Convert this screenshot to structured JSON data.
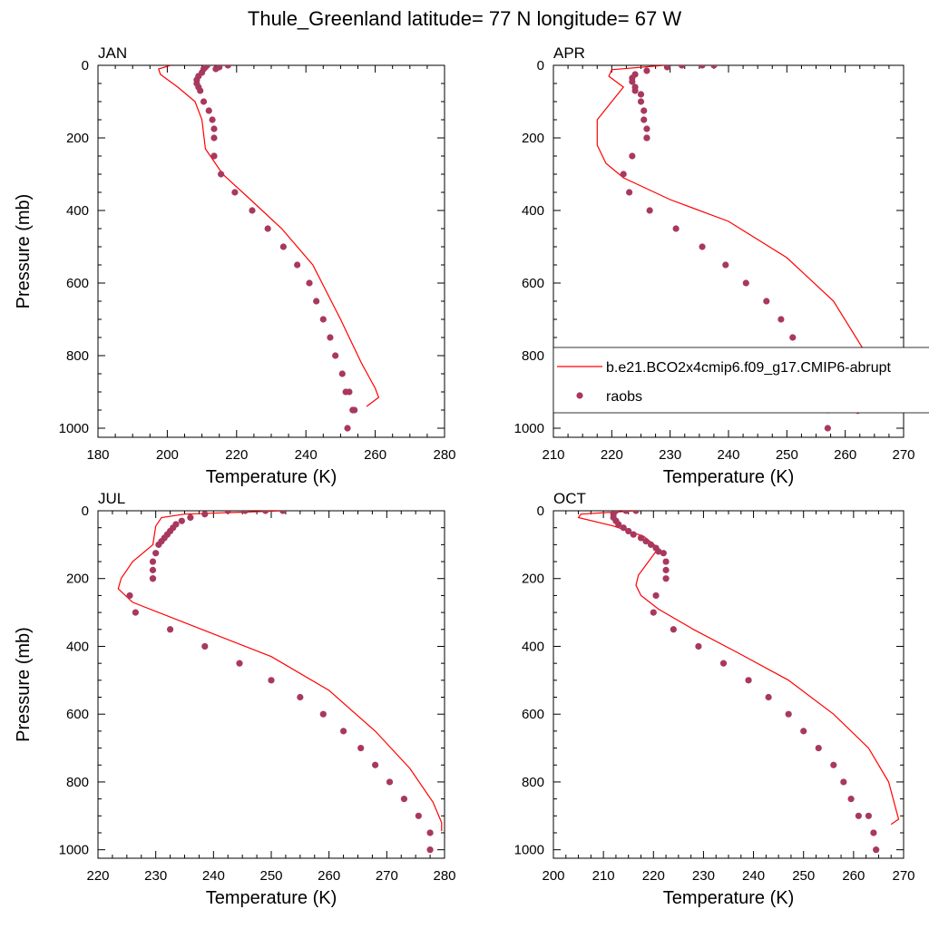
{
  "title": "Thule_Greenland  latitude= 77 N longitude= 67 W",
  "colors": {
    "model_line": "#ff0000",
    "raobs_marker": "#a8385e",
    "axis": "#000000"
  },
  "legend": {
    "placement": "inside APR panel, lower right",
    "model_label": "b.e21.BCO2x4cmip6.f09_g17.CMIP6-abrupt",
    "obs_label": "raobs"
  },
  "chart_data": [
    {
      "type": "line",
      "panel": "JAN",
      "xlabel": "Temperature (K)",
      "ylabel": "Pressure (mb)",
      "xlim": [
        180,
        280
      ],
      "ylim": [
        1025,
        0
      ],
      "xticks": [
        180,
        200,
        220,
        240,
        260,
        280
      ],
      "yticks": [
        0,
        200,
        400,
        600,
        800,
        1000
      ],
      "series": [
        {
          "name": "b.e21.BCO2x4cmip6.f09_g17.CMIP6-abrupt",
          "style": "line",
          "x": [
            201,
            197.5,
            198,
            203,
            208,
            210,
            211,
            216,
            224,
            233,
            242,
            250,
            256,
            260,
            261,
            257.5
          ],
          "y": [
            0,
            10,
            25,
            60,
            100,
            150,
            230,
            300,
            370,
            450,
            550,
            700,
            820,
            890,
            915,
            940
          ]
        },
        {
          "name": "raobs",
          "style": "markers",
          "x": [
            217.5,
            215,
            214,
            211.5,
            211,
            210.5,
            210,
            209,
            208.5,
            208.5,
            209,
            209.5,
            210.5,
            212,
            213,
            213.5,
            213.5,
            213.5,
            213.5,
            215.5,
            219.5,
            224.5,
            229,
            233.5,
            237.5,
            241,
            243,
            245,
            247,
            248.5,
            250.5,
            251.5,
            252.5,
            253.5,
            254,
            252
          ],
          "y": [
            0,
            5,
            10,
            0,
            5,
            10,
            20,
            30,
            40,
            50,
            60,
            70,
            100,
            125,
            150,
            175,
            200,
            250,
            250,
            300,
            350,
            400,
            450,
            500,
            550,
            600,
            650,
            700,
            750,
            800,
            850,
            900,
            900,
            950,
            950,
            1000
          ]
        }
      ]
    },
    {
      "type": "line",
      "panel": "APR",
      "xlabel": "Temperature (K)",
      "ylabel": "",
      "xlim": [
        210,
        270
      ],
      "ylim": [
        1025,
        0
      ],
      "xticks": [
        210,
        220,
        230,
        240,
        250,
        260,
        270
      ],
      "yticks": [
        0,
        200,
        400,
        600,
        800,
        1000
      ],
      "series": [
        {
          "name": "b.e21.BCO2x4cmip6.f09_g17.CMIP6-abrupt",
          "style": "line",
          "x": [
            229,
            220,
            219.5,
            222,
            220,
            217.5,
            217.5,
            219,
            222,
            230,
            240,
            250,
            258,
            263,
            264,
            265,
            262
          ],
          "y": [
            0,
            12,
            30,
            60,
            100,
            150,
            220,
            270,
            310,
            370,
            430,
            530,
            650,
            780,
            880,
            940,
            960
          ]
        },
        {
          "name": "raobs",
          "style": "markers",
          "x": [
            237.5,
            235.5,
            232,
            229.5,
            226,
            224,
            223.5,
            223.5,
            224,
            224,
            225,
            225,
            225.5,
            225.5,
            226,
            226,
            226,
            223.5,
            222,
            223,
            226.5,
            231,
            235.5,
            239.5,
            243,
            246.5,
            249,
            251,
            253,
            254.5,
            256,
            257,
            257
          ],
          "y": [
            0,
            0,
            0,
            5,
            15,
            25,
            35,
            45,
            60,
            70,
            80,
            100,
            125,
            150,
            175,
            200,
            200,
            250,
            300,
            350,
            400,
            450,
            500,
            550,
            600,
            650,
            700,
            750,
            800,
            850,
            900,
            950,
            1000
          ]
        }
      ]
    },
    {
      "type": "line",
      "panel": "JUL",
      "xlabel": "Temperature (K)",
      "ylabel": "Pressure (mb)",
      "xlim": [
        220,
        280
      ],
      "ylim": [
        1025,
        0
      ],
      "xticks": [
        220,
        230,
        240,
        250,
        260,
        270,
        280
      ],
      "yticks": [
        0,
        200,
        400,
        600,
        800,
        1000
      ],
      "series": [
        {
          "name": "b.e21.BCO2x4cmip6.f09_g17.CMIP6-abrupt",
          "style": "line",
          "x": [
            252,
            235,
            231,
            230,
            229.5,
            226,
            224,
            223.5,
            226,
            238,
            250,
            260,
            268,
            274,
            278,
            279.5,
            279.5
          ],
          "y": [
            0,
            10,
            20,
            45,
            100,
            150,
            200,
            230,
            270,
            350,
            430,
            530,
            650,
            760,
            860,
            920,
            945
          ]
        },
        {
          "name": "raobs",
          "style": "markers",
          "x": [
            252,
            249,
            245.5,
            242.5,
            238.5,
            236,
            234.5,
            233.5,
            233,
            232.5,
            232,
            231.5,
            231,
            230.5,
            230,
            229.5,
            229.5,
            229.5,
            229.5,
            225.5,
            226.5,
            232.5,
            238.5,
            244.5,
            250,
            255,
            259,
            262.5,
            265.5,
            268,
            270.5,
            273,
            275.5,
            277.5,
            277.5
          ],
          "y": [
            0,
            0,
            0,
            0,
            10,
            20,
            30,
            40,
            50,
            60,
            70,
            80,
            90,
            100,
            125,
            150,
            175,
            200,
            200,
            250,
            300,
            350,
            400,
            450,
            500,
            550,
            600,
            650,
            700,
            750,
            800,
            850,
            900,
            950,
            1000
          ]
        }
      ]
    },
    {
      "type": "line",
      "panel": "OCT",
      "xlabel": "Temperature (K)",
      "ylabel": "",
      "xlim": [
        200,
        270
      ],
      "ylim": [
        1025,
        0
      ],
      "xticks": [
        200,
        210,
        220,
        230,
        240,
        250,
        260,
        270
      ],
      "yticks": [
        0,
        200,
        400,
        600,
        800,
        1000
      ],
      "series": [
        {
          "name": "b.e21.BCO2x4cmip6.f09_g17.CMIP6-abrupt",
          "style": "line",
          "x": [
            216.5,
            205.5,
            205,
            212,
            218,
            221,
            217,
            216.5,
            217.5,
            221,
            228,
            237,
            247,
            256,
            263,
            267,
            269,
            267.5
          ],
          "y": [
            0,
            10,
            20,
            45,
            75,
            110,
            190,
            220,
            250,
            290,
            350,
            420,
            500,
            600,
            700,
            800,
            910,
            925
          ]
        },
        {
          "name": "raobs",
          "style": "markers",
          "x": [
            216.5,
            214.5,
            212.5,
            212,
            212,
            212.5,
            213,
            214,
            215,
            216,
            217.5,
            218.5,
            219.5,
            220.5,
            221,
            222,
            222.5,
            222.5,
            222.5,
            220.5,
            220,
            224,
            229,
            234,
            239,
            243,
            247,
            250,
            253,
            256,
            258,
            259.5,
            261,
            263,
            264,
            264.5
          ],
          "y": [
            0,
            0,
            0,
            10,
            20,
            30,
            40,
            50,
            60,
            70,
            80,
            90,
            100,
            110,
            120,
            125,
            150,
            175,
            200,
            250,
            300,
            350,
            400,
            450,
            500,
            550,
            600,
            650,
            700,
            750,
            800,
            850,
            900,
            900,
            950,
            1000
          ]
        }
      ]
    }
  ]
}
